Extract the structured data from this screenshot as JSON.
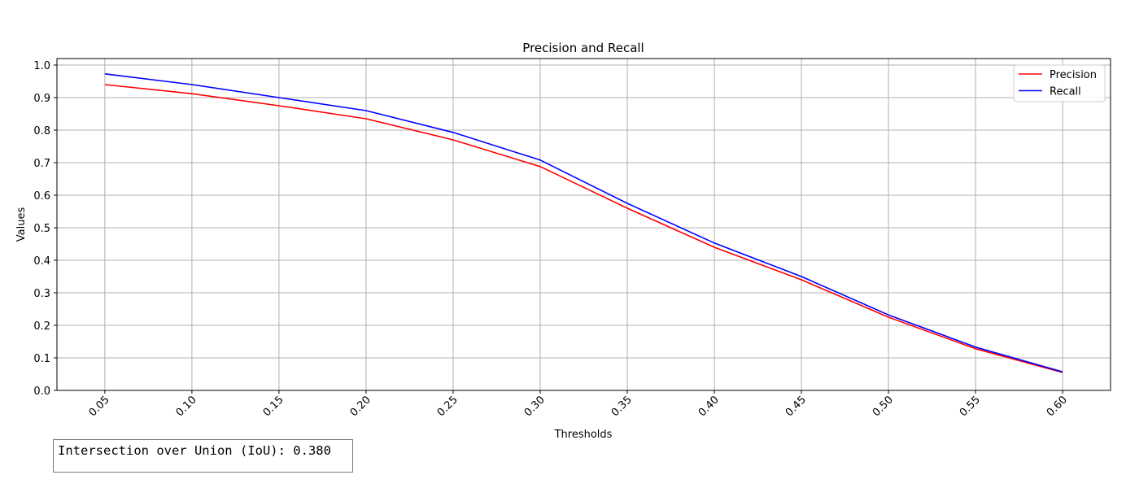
{
  "chart_data": {
    "type": "line",
    "title": "Precision and Recall",
    "xlabel": "Thresholds",
    "ylabel": "Values",
    "x": [
      0.05,
      0.1,
      0.15,
      0.2,
      0.25,
      0.3,
      0.35,
      0.4,
      0.45,
      0.5,
      0.55,
      0.6
    ],
    "xticks": [
      "0.05",
      "0.10",
      "0.15",
      "0.20",
      "0.25",
      "0.30",
      "0.35",
      "0.40",
      "0.45",
      "0.50",
      "0.55",
      "0.60"
    ],
    "yticks": [
      "0.0",
      "0.1",
      "0.2",
      "0.3",
      "0.4",
      "0.5",
      "0.6",
      "0.7",
      "0.8",
      "0.9",
      "1.0"
    ],
    "ylim": [
      0.0,
      1.02
    ],
    "grid": true,
    "legend_position": "top-right",
    "series": [
      {
        "name": "Precision",
        "color": "#ff0000",
        "values": [
          0.94,
          0.912,
          0.875,
          0.835,
          0.77,
          0.688,
          0.56,
          0.44,
          0.34,
          0.225,
          0.128,
          0.055
        ]
      },
      {
        "name": "Recall",
        "color": "#0000ff",
        "values": [
          0.973,
          0.94,
          0.9,
          0.86,
          0.793,
          0.708,
          0.575,
          0.453,
          0.35,
          0.232,
          0.133,
          0.057
        ]
      }
    ]
  },
  "annotation": {
    "text": "Intersection over Union (IoU): 0.380"
  }
}
